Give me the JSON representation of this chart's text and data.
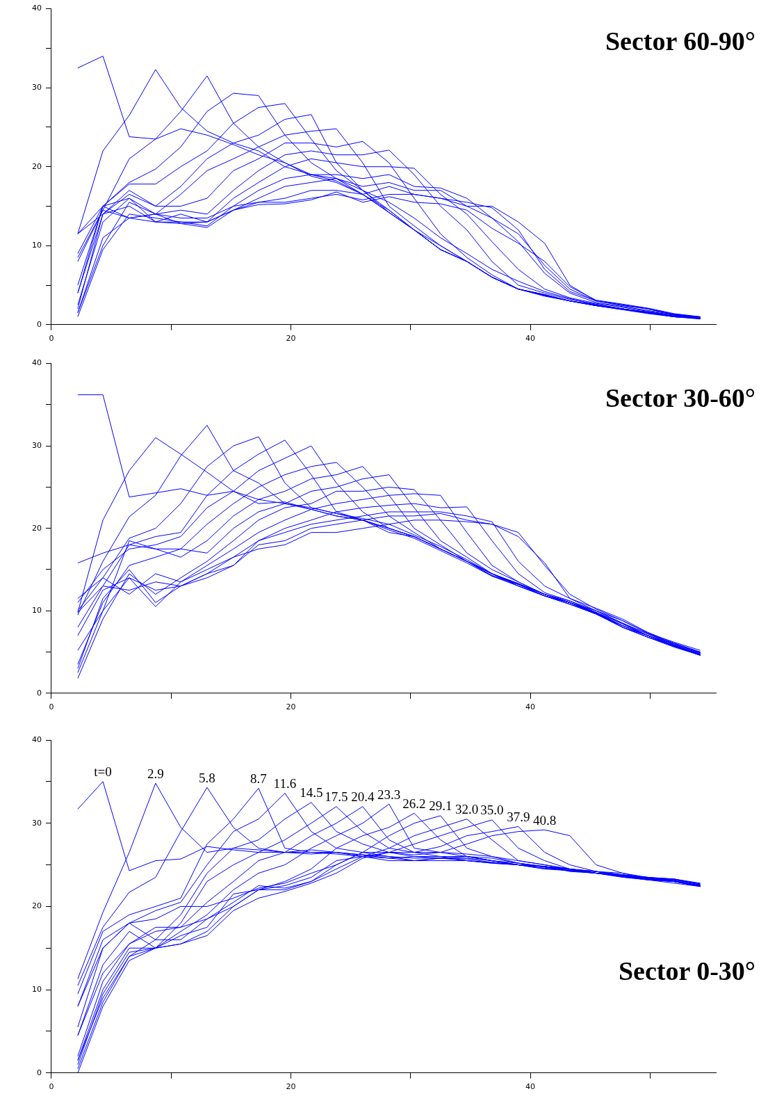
{
  "chart_data": [
    {
      "type": "line",
      "title": "Sector 60-90°",
      "x": [
        2.2,
        4.3,
        6.5,
        8.7,
        10.8,
        13,
        15.2,
        17.3,
        19.5,
        21.7,
        23.8,
        26,
        28.2,
        30.3,
        32.5,
        34.7,
        36.8,
        39,
        41.2,
        43.3,
        45.5,
        47.7,
        49.8,
        52,
        54.2
      ],
      "xlim": [
        0,
        55.5
      ],
      "xticks": [
        0,
        {
          "value": 10,
          "label": null
        },
        20,
        {
          "value": 30,
          "label": null
        },
        40,
        {
          "value": 50,
          "label": null
        }
      ],
      "ylim": [
        0,
        40
      ],
      "yticks": [
        0,
        {
          "value": 5,
          "label": null
        },
        10,
        {
          "value": 15,
          "label": null
        },
        20,
        {
          "value": 25,
          "label": null
        },
        30,
        {
          "value": 35,
          "label": null
        },
        40
      ],
      "series": [
        {
          "color": "#0000ff",
          "values": [
            32.5,
            34,
            23.8,
            23.5,
            24.8,
            24,
            22.8,
            21.5,
            20.5,
            19,
            18.5,
            17,
            15.5,
            13.5,
            11,
            9,
            7,
            5.5,
            4.2,
            3.3,
            2.5,
            2,
            1.6,
            1,
            0.8
          ]
        },
        {
          "color": "#0000ff",
          "values": [
            11.5,
            22,
            26.5,
            32.3,
            27.5,
            24.5,
            23,
            22,
            20,
            19,
            18.2,
            16.5,
            14.5,
            12,
            10,
            8,
            6,
            4.5,
            3.8,
            3,
            2.4,
            1.9,
            1.5,
            1,
            0.8
          ]
        },
        {
          "color": "#0000ff",
          "values": [
            8,
            14.5,
            21,
            23.5,
            27,
            31.5,
            25.5,
            22.5,
            20.5,
            18.8,
            18,
            16.5,
            14.2,
            12,
            9.5,
            8,
            6,
            4.5,
            3.7,
            3,
            2.4,
            1.9,
            1.4,
            1,
            0.7
          ]
        },
        {
          "color": "#0000ff",
          "values": [
            9,
            15,
            18,
            19.7,
            22.5,
            27,
            29.3,
            29,
            24,
            20.5,
            18.5,
            16.5,
            14.2,
            12,
            9.5,
            8,
            6,
            4.5,
            3.8,
            3,
            2.4,
            2,
            1.5,
            1.1,
            0.8
          ]
        },
        {
          "color": "#0000ff",
          "values": [
            5,
            15,
            17.8,
            17.8,
            20,
            22,
            25.5,
            27.5,
            28,
            23.5,
            19.5,
            17,
            14.5,
            12,
            9.5,
            8,
            6,
            4.5,
            3.7,
            3,
            2.5,
            2,
            1.5,
            1,
            0.8
          ]
        },
        {
          "color": "#0000ff",
          "values": [
            11.5,
            14,
            17,
            15,
            17.5,
            21,
            23,
            24,
            26,
            26.6,
            20.5,
            17,
            14.2,
            12,
            9.5,
            8,
            6,
            4.5,
            3.6,
            3,
            2.4,
            2,
            1.5,
            1,
            0.8
          ]
        },
        {
          "color": "#0000ff",
          "values": [
            4,
            15,
            16,
            14,
            16.5,
            19.5,
            21,
            22.5,
            24,
            24.5,
            24.8,
            20.5,
            15,
            12.5,
            10,
            8,
            6,
            4.5,
            3.7,
            3,
            2.5,
            2,
            1.5,
            1,
            0.8
          ]
        },
        {
          "color": "#0000ff",
          "values": [
            2,
            14,
            16.5,
            15,
            15,
            16,
            19.5,
            21,
            23,
            23,
            22.5,
            23.2,
            20.5,
            16,
            11.5,
            8.5,
            6.3,
            4.5,
            3.8,
            3,
            2.5,
            2,
            1.6,
            1.1,
            0.8
          ]
        },
        {
          "color": "#0000ff",
          "values": [
            1.5,
            10,
            15.5,
            14,
            14.5,
            14,
            17,
            19.5,
            21.5,
            22,
            21.5,
            21.5,
            22.1,
            19,
            15,
            12,
            8,
            5,
            4,
            3.2,
            2.6,
            2,
            1.6,
            1.2,
            0.8
          ]
        },
        {
          "color": "#0000ff",
          "values": [
            1,
            9.5,
            14,
            13.5,
            13,
            13,
            16,
            18,
            20,
            21,
            20.5,
            20,
            20,
            19.8,
            16.5,
            14,
            10.5,
            7,
            4.5,
            3.4,
            2.7,
            2.2,
            1.7,
            1.2,
            0.9
          ]
        },
        {
          "color": "#0000ff",
          "values": [
            1.5,
            11,
            13.5,
            14,
            13.5,
            13.5,
            15,
            17,
            18.5,
            19,
            19,
            18.5,
            19,
            17.5,
            17.3,
            16,
            13.5,
            10.5,
            6.5,
            4,
            2.8,
            2.3,
            1.8,
            1.3,
            0.9
          ]
        },
        {
          "color": "#0000ff",
          "values": [
            2.5,
            13,
            16,
            13,
            14,
            13,
            14.5,
            16,
            17.5,
            18,
            18.5,
            17.5,
            18,
            17,
            17,
            15,
            15,
            13,
            10.3,
            5,
            3,
            2.5,
            2,
            1.3,
            1
          ]
        },
        {
          "color": "#0000ff",
          "values": [
            4,
            14,
            15,
            13,
            13,
            12.5,
            15,
            15.5,
            16,
            17,
            17,
            16.5,
            17.5,
            16.5,
            16,
            15.5,
            14.8,
            12,
            7,
            4.2,
            3,
            2.5,
            2,
            1.3,
            0.9
          ]
        },
        {
          "color": "#0000ff",
          "values": [
            8.5,
            14.5,
            13.5,
            13,
            12.8,
            13,
            14.5,
            15.5,
            15.5,
            16,
            16.5,
            15.8,
            16.5,
            16.5,
            16,
            15,
            13.5,
            11.5,
            7.5,
            4.5,
            3,
            2.4,
            2,
            1.3,
            0.9
          ]
        },
        {
          "color": "#0000ff",
          "values": [
            11.5,
            15,
            13.5,
            14,
            12.8,
            12.3,
            14.5,
            15.2,
            15.3,
            15.8,
            16.8,
            15.5,
            16.2,
            15.5,
            15.3,
            14.5,
            12.2,
            10.3,
            8,
            4.8,
            3.1,
            2.6,
            2.1,
            1.4,
            1
          ]
        }
      ]
    },
    {
      "type": "line",
      "title": "Sector 30-60°",
      "x": [
        2.2,
        4.3,
        6.5,
        8.7,
        10.8,
        13,
        15.2,
        17.3,
        19.5,
        21.7,
        23.8,
        26,
        28.2,
        30.3,
        32.5,
        34.7,
        36.8,
        39,
        41.2,
        43.3,
        45.5,
        47.7,
        49.8,
        52,
        54.2
      ],
      "xlim": [
        0,
        55.5
      ],
      "xticks": [
        0,
        {
          "value": 10,
          "label": null
        },
        20,
        {
          "value": 30,
          "label": null
        },
        40,
        {
          "value": 50,
          "label": null
        }
      ],
      "ylim": [
        0,
        40
      ],
      "yticks": [
        0,
        {
          "value": 5,
          "label": null
        },
        10,
        {
          "value": 15,
          "label": null
        },
        20,
        {
          "value": 25,
          "label": null
        },
        30,
        {
          "value": 35,
          "label": null
        },
        40
      ],
      "series": [
        {
          "color": "#0000ff",
          "values": [
            36.2,
            36.2,
            23.8,
            24.3,
            24.8,
            24,
            24.5,
            23.5,
            23,
            22.5,
            21.8,
            21.2,
            20.5,
            19.2,
            17.8,
            16.2,
            14.5,
            13.3,
            12,
            11.2,
            10,
            8.8,
            7.3,
            6.2,
            5.2
          ]
        },
        {
          "color": "#0000ff",
          "values": [
            9.8,
            21,
            27,
            31,
            29,
            26.8,
            24.5,
            23,
            23.2,
            22.3,
            21.5,
            21,
            20,
            19,
            17.5,
            16,
            14.5,
            13.3,
            12,
            11,
            10,
            8.5,
            7.2,
            6,
            5
          ]
        },
        {
          "color": "#0000ff",
          "values": [
            9.5,
            16,
            21.4,
            24,
            28.8,
            32.5,
            27,
            25.5,
            23,
            22.3,
            21.5,
            21,
            19.5,
            19,
            17.5,
            16,
            14.3,
            13.2,
            11.8,
            11,
            9.8,
            8.4,
            7,
            6,
            4.9
          ]
        },
        {
          "color": "#0000ff",
          "values": [
            11.5,
            14,
            18.8,
            20,
            23,
            27.5,
            30,
            31.1,
            25.5,
            22.5,
            21.8,
            21,
            20,
            19,
            17.5,
            16,
            14.2,
            13.2,
            12,
            11,
            9.8,
            8.2,
            7,
            5.8,
            4.8
          ]
        },
        {
          "color": "#0000ff",
          "values": [
            8,
            13,
            18,
            19,
            19.5,
            24,
            27,
            29,
            30.7,
            26.5,
            22,
            21,
            19.8,
            18.8,
            17.3,
            15.8,
            14.2,
            13,
            11.8,
            10.8,
            9.8,
            8,
            7,
            5.8,
            4.7
          ]
        },
        {
          "color": "#0000ff",
          "values": [
            11,
            15,
            17.5,
            18,
            19,
            22.5,
            24.5,
            27,
            28.5,
            30,
            25.5,
            22,
            20,
            19,
            17.5,
            16,
            14.5,
            13.2,
            11.8,
            10.8,
            9.6,
            8.2,
            7,
            5.7,
            4.7
          ]
        },
        {
          "color": "#0000ff",
          "values": [
            15.8,
            17,
            18,
            17.5,
            17.5,
            20.5,
            23,
            25,
            26.5,
            27.5,
            28,
            25,
            21.5,
            19.5,
            17.5,
            16,
            14.5,
            13,
            11.8,
            11,
            9.7,
            8,
            6.8,
            5.8,
            4.6
          ]
        },
        {
          "color": "#0000ff",
          "values": [
            5.2,
            10,
            18.5,
            17.5,
            16.5,
            18.5,
            21.5,
            23.5,
            24.5,
            26,
            26.5,
            27.5,
            24,
            20,
            18,
            16,
            14.5,
            13,
            11.8,
            10.8,
            9.6,
            8,
            6.8,
            5.7,
            4.6
          ]
        },
        {
          "color": "#0000ff",
          "values": [
            3.5,
            11,
            15.5,
            16.5,
            17.5,
            17,
            20,
            22,
            23,
            24.5,
            25,
            26,
            26.5,
            22.5,
            18.5,
            16.5,
            14.5,
            13.2,
            12,
            11,
            9.7,
            8.2,
            7,
            5.8,
            4.7
          ]
        },
        {
          "color": "#0000ff",
          "values": [
            1.8,
            9,
            14.5,
            12,
            14,
            16,
            18.5,
            21,
            22.5,
            23,
            24.5,
            24.5,
            25,
            24.7,
            21,
            17,
            15,
            13.5,
            12,
            11,
            9.6,
            8,
            6.8,
            5.6,
            4.6
          ]
        },
        {
          "color": "#0000ff",
          "values": [
            2.5,
            10,
            14,
            10.5,
            13.5,
            15.5,
            17.5,
            19.5,
            21,
            22.3,
            23,
            23.5,
            24,
            24.2,
            24,
            19.5,
            15.5,
            13.5,
            12,
            11,
            9.7,
            8.2,
            7,
            5.7,
            4.6
          ]
        },
        {
          "color": "#0000ff",
          "values": [
            3,
            11.5,
            15,
            11,
            13,
            14.5,
            16.5,
            18.5,
            20,
            21,
            22,
            22.5,
            22.8,
            23,
            22.5,
            22.6,
            18.5,
            14.5,
            12.2,
            11.2,
            9.8,
            8.5,
            7,
            5.8,
            4.7
          ]
        },
        {
          "color": "#0000ff",
          "values": [
            7,
            12.5,
            14,
            12.5,
            13,
            14,
            15.5,
            18.5,
            19.5,
            20.5,
            21,
            21.5,
            22,
            22,
            22,
            21.5,
            20.8,
            16,
            13,
            11.5,
            10,
            8.5,
            7.2,
            5.9,
            4.8
          ]
        },
        {
          "color": "#0000ff",
          "values": [
            9.8,
            13,
            12.5,
            13.5,
            13,
            14.5,
            15.5,
            18,
            18.5,
            20,
            20.5,
            21,
            21.5,
            21.5,
            21.8,
            21,
            20.5,
            19.5,
            15.5,
            12,
            10.2,
            8.8,
            7.3,
            6,
            4.9
          ]
        },
        {
          "color": "#0000ff",
          "values": [
            10,
            14,
            12,
            14.5,
            13.5,
            15,
            16.5,
            17.5,
            18,
            19.5,
            19.5,
            20,
            20.5,
            21,
            21,
            20.8,
            20.5,
            19,
            15.8,
            11.5,
            10.3,
            9,
            7.4,
            6.1,
            5
          ]
        }
      ]
    },
    {
      "type": "line",
      "title": "Sector 0-30°",
      "x": [
        2.2,
        4.3,
        6.5,
        8.7,
        10.8,
        13,
        15.2,
        17.3,
        19.5,
        21.7,
        23.8,
        26,
        28.2,
        30.3,
        32.5,
        34.7,
        36.8,
        39,
        41.2,
        43.3,
        45.5,
        47.7,
        49.8,
        52,
        54.2
      ],
      "xlim": [
        0,
        55.5
      ],
      "xticks": [
        0,
        {
          "value": 10,
          "label": null
        },
        20,
        {
          "value": 30,
          "label": null
        },
        40,
        {
          "value": 50,
          "label": null
        }
      ],
      "ylim": [
        0,
        40
      ],
      "yticks": [
        0,
        {
          "value": 5,
          "label": null
        },
        10,
        {
          "value": 15,
          "label": null
        },
        20,
        {
          "value": 25,
          "label": null
        },
        30,
        {
          "value": 35,
          "label": null
        },
        40
      ],
      "series": [
        {
          "name": "t=0",
          "color": "#0000ff",
          "values": [
            31.7,
            35,
            24.3,
            25.5,
            25.7,
            27.2,
            26.8,
            26.5,
            26.5,
            26.8,
            26.5,
            26,
            25.8,
            26,
            25.8,
            26,
            25.5,
            25,
            24.8,
            24.5,
            24.2,
            24,
            23.5,
            23.3,
            22.8
          ]
        },
        {
          "name": "2.9",
          "color": "#0000ff",
          "values": [
            11.3,
            19.3,
            26.5,
            34.8,
            29.5,
            26.5,
            27,
            26.8,
            26.5,
            26.3,
            26.5,
            26.2,
            25.8,
            25.5,
            25.8,
            25.7,
            25.3,
            25,
            24.6,
            24.3,
            24,
            23.8,
            23.5,
            23.3,
            22.7
          ]
        },
        {
          "name": "5.8",
          "color": "#0000ff",
          "values": [
            10.5,
            17.5,
            21.7,
            23.5,
            29,
            34.3,
            29.5,
            27,
            26.5,
            26.5,
            26.3,
            26,
            25.5,
            25.5,
            25.5,
            25.5,
            25.3,
            25,
            24.5,
            24.5,
            24,
            23.8,
            23.4,
            23.3,
            22.6
          ]
        },
        {
          "name": "8.7",
          "color": "#0000ff",
          "values": [
            9.5,
            17,
            19,
            20,
            21,
            27.5,
            30.5,
            34.2,
            27,
            26.5,
            26.5,
            26.2,
            26,
            25.5,
            25.8,
            25.5,
            25.2,
            25,
            24.8,
            24.3,
            24.2,
            23.8,
            23.5,
            23.2,
            22.7
          ]
        },
        {
          "name": "11.6",
          "color": "#0000ff",
          "values": [
            8,
            16,
            18,
            19.5,
            20.5,
            25,
            29,
            30.5,
            33.6,
            29,
            27,
            26.5,
            26,
            25.8,
            25.8,
            25.8,
            25.5,
            25,
            24.8,
            24.5,
            24,
            23.7,
            23.4,
            23.2,
            22.6
          ]
        },
        {
          "name": "14.5",
          "color": "#0000ff",
          "values": [
            5.5,
            15,
            18,
            16,
            19,
            24,
            27,
            28,
            30.5,
            32.5,
            29,
            27.5,
            26.5,
            26,
            26,
            26,
            25.5,
            25,
            24.8,
            24.2,
            24,
            23.5,
            23.2,
            23,
            22.5
          ]
        },
        {
          "name": "17.5",
          "color": "#0000ff",
          "values": [
            4.5,
            13,
            17,
            15,
            18,
            23,
            25,
            26.5,
            28,
            30,
            32,
            29,
            27,
            26.5,
            26,
            25.5,
            25.2,
            25,
            24.5,
            24.3,
            24,
            23.7,
            23.3,
            23,
            22.5
          ]
        },
        {
          "name": "20.4",
          "color": "#0000ff",
          "values": [
            2,
            11,
            15.5,
            17.5,
            17.5,
            20.5,
            23,
            25.5,
            26.5,
            28.5,
            30,
            32,
            28,
            26.5,
            26.5,
            26,
            25.5,
            25.2,
            24.8,
            24.5,
            24.2,
            23.8,
            23.5,
            23.1,
            22.5
          ]
        },
        {
          "name": "23.3",
          "color": "#0000ff",
          "values": [
            1.5,
            10,
            15,
            15,
            17,
            19,
            22,
            24,
            25,
            27,
            28.5,
            30,
            32.3,
            27,
            26.5,
            26.3,
            26,
            25.2,
            24.8,
            24.4,
            24,
            23.7,
            23.4,
            23,
            22.5
          ]
        },
        {
          "name": "26.2",
          "color": "#0000ff",
          "values": [
            1,
            9.5,
            14.5,
            15,
            16.5,
            17.5,
            21.5,
            22,
            23,
            24.5,
            27,
            28.5,
            29.5,
            31.2,
            28,
            26,
            25.8,
            25.2,
            24.7,
            24.3,
            24,
            23.6,
            23.2,
            23,
            22.4
          ]
        },
        {
          "name": "29.1",
          "color": "#0000ff",
          "values": [
            0.5,
            8.5,
            14,
            16,
            16,
            18.5,
            20.5,
            22.5,
            22.2,
            23,
            25,
            26.5,
            28.5,
            30,
            30.9,
            27,
            26,
            25.5,
            25,
            24.5,
            24.2,
            23.7,
            23.4,
            23.1,
            22.5
          ]
        },
        {
          "name": "32.0",
          "color": "#0000ff",
          "values": [
            0,
            8,
            13.5,
            15,
            15.5,
            17,
            20,
            22,
            22,
            23,
            24.5,
            26,
            27,
            28.5,
            29.5,
            30.5,
            28,
            25.5,
            25,
            24.5,
            24,
            23.6,
            23.3,
            23,
            22.4
          ]
        },
        {
          "name": "35.0",
          "color": "#0000ff",
          "values": [
            1.5,
            9,
            14,
            15,
            15.5,
            16.5,
            19.5,
            21,
            21.8,
            22.8,
            24,
            25.8,
            26.5,
            27.5,
            28.5,
            29.5,
            30.4,
            27,
            25.5,
            24.5,
            24,
            23.6,
            23.2,
            22.8,
            22.4
          ]
        },
        {
          "name": "37.9",
          "color": "#0000ff",
          "values": [
            4.5,
            12,
            15.5,
            17,
            17.5,
            18.5,
            20,
            22,
            22.5,
            23.5,
            25.5,
            26,
            26.5,
            26.5,
            27.2,
            28.5,
            29,
            29.6,
            26.5,
            25,
            24.2,
            23.6,
            23.3,
            23,
            22.4
          ]
        },
        {
          "name": "40.8",
          "color": "#0000ff",
          "values": [
            8,
            15,
            18,
            18.5,
            20,
            20,
            21,
            22.2,
            22.8,
            24,
            25,
            26.5,
            26.5,
            26.2,
            26.5,
            27.5,
            28.5,
            29,
            29.2,
            28.5,
            25,
            24,
            23.3,
            23,
            22.5
          ]
        }
      ]
    }
  ]
}
